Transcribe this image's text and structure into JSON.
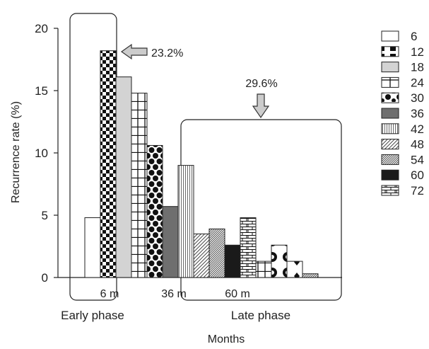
{
  "chart_data": {
    "type": "bar",
    "ylabel": "Recurrence rate (%)",
    "xlabel": "Months",
    "ylim": [
      0,
      20
    ],
    "yticks": [
      0,
      5,
      10,
      15,
      20
    ],
    "categories": [
      "6",
      "12",
      "18",
      "24",
      "30",
      "36",
      "42",
      "48",
      "54",
      "60",
      "72"
    ],
    "values": [
      4.8,
      18.2,
      16.1,
      14.8,
      10.6,
      5.7,
      9.0,
      3.5,
      3.9,
      2.6,
      4.8
    ],
    "extra_bars": [
      1.3,
      2.6,
      1.3,
      0.3
    ],
    "markers": {
      "m6": "6 m",
      "m36": "36 m",
      "m60": "60 m"
    },
    "phases": {
      "early": "Early phase",
      "late": "Late phase"
    },
    "annotations": {
      "early_pct": "23.2%",
      "late_pct": "29.6%"
    },
    "legend": {
      "position": "right",
      "entries": [
        {
          "label": "6",
          "pattern": "white"
        },
        {
          "label": "12",
          "pattern": "half-black"
        },
        {
          "label": "18",
          "pattern": "light-gray"
        },
        {
          "label": "24",
          "pattern": "grid"
        },
        {
          "label": "30",
          "pattern": "dots"
        },
        {
          "label": "36",
          "pattern": "dark-gray"
        },
        {
          "label": "42",
          "pattern": "vertical-lines"
        },
        {
          "label": "48",
          "pattern": "diagonal-lines"
        },
        {
          "label": "54",
          "pattern": "dense-diagonal"
        },
        {
          "label": "60",
          "pattern": "black"
        },
        {
          "label": "72",
          "pattern": "brick"
        }
      ]
    }
  }
}
